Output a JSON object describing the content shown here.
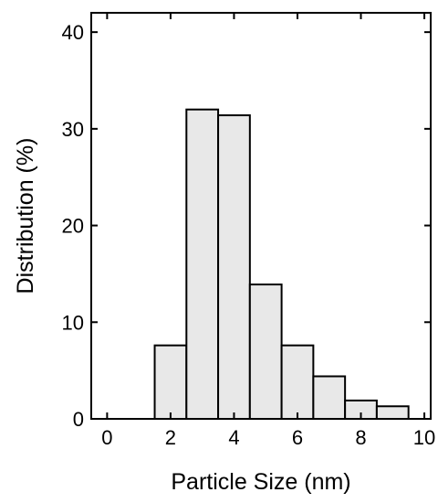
{
  "chart_data": {
    "type": "bar",
    "title": "",
    "xlabel": "Particle Size (nm)",
    "ylabel": "Distribution (%)",
    "xlim": [
      -0.5,
      10.2
    ],
    "ylim": [
      0,
      42
    ],
    "xticks": [
      0,
      2,
      4,
      6,
      8,
      10
    ],
    "yticks": [
      0,
      10,
      20,
      30,
      40
    ],
    "bin_width": 1,
    "bins": [
      {
        "center": 2,
        "value": 7.6
      },
      {
        "center": 3,
        "value": 32.0
      },
      {
        "center": 4,
        "value": 31.4
      },
      {
        "center": 5,
        "value": 13.9
      },
      {
        "center": 6,
        "value": 7.6
      },
      {
        "center": 7,
        "value": 4.4
      },
      {
        "center": 8,
        "value": 1.9
      },
      {
        "center": 9,
        "value": 1.3
      }
    ],
    "bar_color": "#e8e8e8",
    "edge_color": "#000000",
    "grid": false,
    "legend": "none"
  }
}
